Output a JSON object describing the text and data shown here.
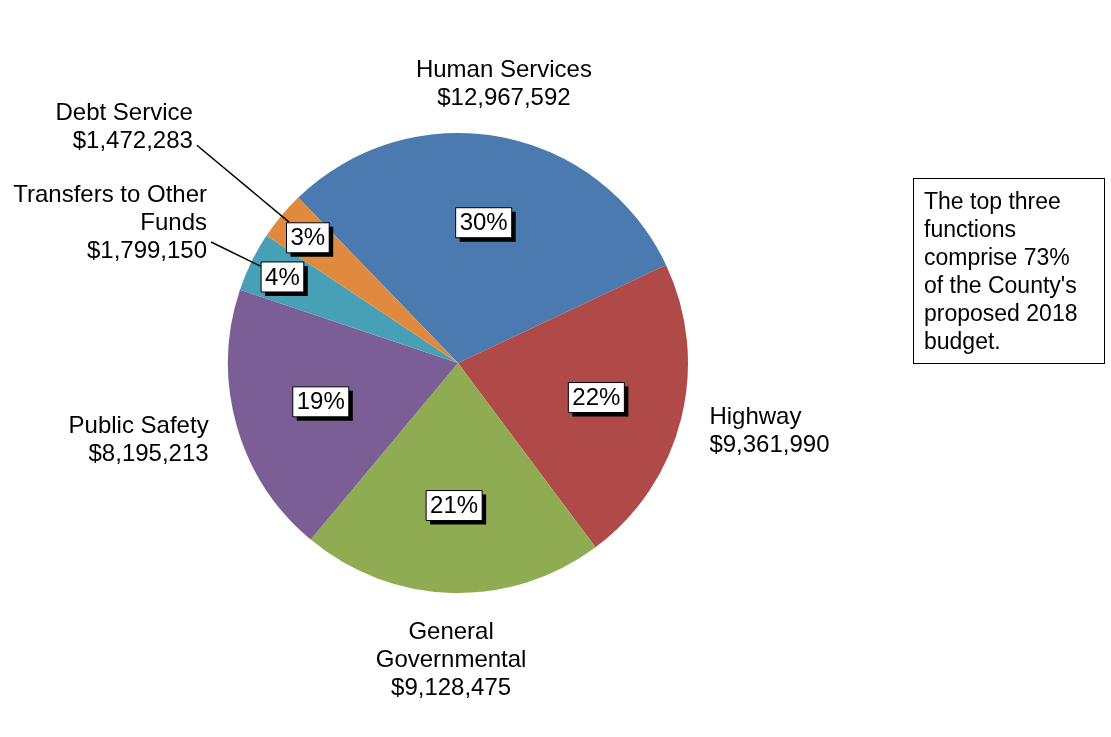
{
  "chart_data": {
    "type": "pie",
    "categories": [
      "Human Services",
      "Highway",
      "General Governmental",
      "Public Safety",
      "Transfers to Other Funds",
      "Debt Service"
    ],
    "values": [
      12967592,
      9361990,
      9128475,
      8195213,
      1799150,
      1472283
    ],
    "colors": [
      "#4a7ab0",
      "#b04a48",
      "#8fac53",
      "#7b5e96",
      "#47a0b5",
      "#e08a3f"
    ],
    "value_labels": [
      "$12,967,592",
      "$9,361,990",
      "$9,128,475",
      "$8,195,213",
      "$1,799,150",
      "$1,472,283"
    ],
    "annotations": [
      {
        "text": "30%",
        "x": "Human Services"
      },
      {
        "text": "22%",
        "x": "Highway"
      },
      {
        "text": "21%",
        "x": "General Governmental"
      },
      {
        "text": "19%",
        "x": "Public Safety"
      },
      {
        "text": "4%",
        "x": "Transfers to Other Funds"
      },
      {
        "text": "3%",
        "x": "Debt Service"
      },
      "The top three functions comprise 73% of the County's proposed 2018 budget."
    ]
  }
}
